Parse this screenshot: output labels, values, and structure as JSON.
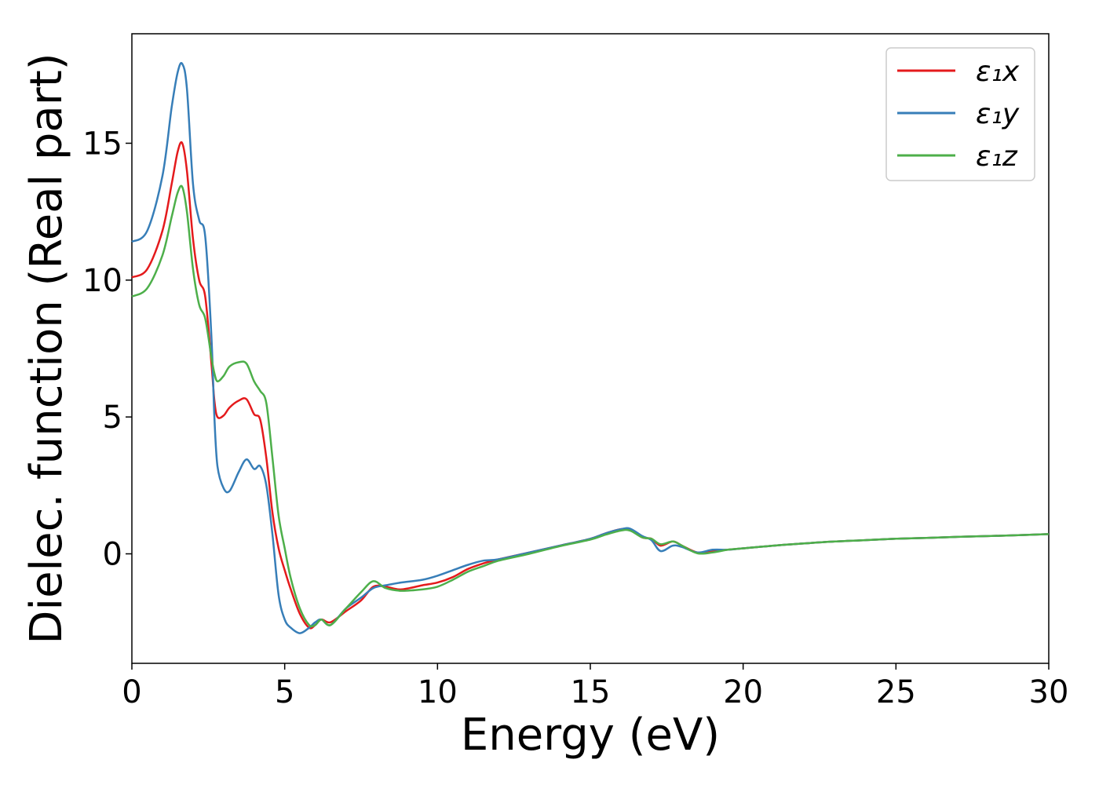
{
  "chart_data": {
    "type": "line",
    "title": "",
    "xlabel": "Energy (eV)",
    "ylabel": "Dielec. function (Real part)",
    "xlim": [
      0,
      30
    ],
    "ylim": [
      -4,
      19
    ],
    "xticks": [
      "0",
      "5",
      "10",
      "15",
      "20",
      "25",
      "30"
    ],
    "yticks": [
      "0",
      "5",
      "10",
      "15"
    ],
    "grid": false,
    "legend_position": "top-right",
    "x": [
      0,
      0.5,
      1.0,
      1.3,
      1.5,
      1.65,
      1.8,
      2.0,
      2.2,
      2.4,
      2.6,
      2.7,
      2.8,
      3.0,
      3.2,
      3.5,
      3.75,
      4.0,
      4.2,
      4.4,
      4.6,
      4.8,
      5.0,
      5.2,
      5.5,
      5.8,
      6.0,
      6.2,
      6.5,
      7.0,
      7.5,
      7.9,
      8.3,
      8.8,
      9.5,
      10.0,
      10.5,
      11.0,
      11.5,
      12.0,
      13.0,
      14.0,
      15.0,
      15.5,
      16.0,
      16.3,
      16.7,
      17.0,
      17.3,
      17.7,
      18.0,
      18.5,
      19.0,
      19.5,
      20.0,
      21.0,
      22.0,
      23.0,
      24.0,
      25.0,
      26.0,
      27.0,
      28.0,
      29.0,
      30.0
    ],
    "series": [
      {
        "name": "ε₁x",
        "color": "#e41a1c",
        "values": [
          10.1,
          10.4,
          11.8,
          13.5,
          14.7,
          15.0,
          14.0,
          11.5,
          10.0,
          9.4,
          7.0,
          5.6,
          5.0,
          5.05,
          5.35,
          5.6,
          5.65,
          5.1,
          4.9,
          3.5,
          1.5,
          0.2,
          -0.6,
          -1.3,
          -2.2,
          -2.7,
          -2.6,
          -2.4,
          -2.5,
          -2.1,
          -1.7,
          -1.2,
          -1.2,
          -1.3,
          -1.15,
          -1.05,
          -0.85,
          -0.55,
          -0.35,
          -0.2,
          0.05,
          0.3,
          0.55,
          0.75,
          0.9,
          0.88,
          0.6,
          0.55,
          0.3,
          0.45,
          0.3,
          0.05,
          0.1,
          0.15,
          0.2,
          0.3,
          0.38,
          0.45,
          0.5,
          0.55,
          0.58,
          0.62,
          0.65,
          0.68,
          0.72
        ]
      },
      {
        "name": "ε₁y",
        "color": "#377eb8",
        "values": [
          11.4,
          11.8,
          13.8,
          16.3,
          17.6,
          17.9,
          17.0,
          13.5,
          12.2,
          11.6,
          8.0,
          5.0,
          3.2,
          2.4,
          2.3,
          3.0,
          3.45,
          3.1,
          3.2,
          2.5,
          0.7,
          -1.5,
          -2.4,
          -2.7,
          -2.9,
          -2.7,
          -2.5,
          -2.4,
          -2.6,
          -2.0,
          -1.6,
          -1.25,
          -1.15,
          -1.05,
          -0.95,
          -0.8,
          -0.6,
          -0.4,
          -0.25,
          -0.2,
          0.05,
          0.3,
          0.55,
          0.75,
          0.9,
          0.92,
          0.65,
          0.5,
          0.1,
          0.3,
          0.25,
          0.05,
          0.15,
          0.15,
          0.2,
          0.3,
          0.38,
          0.45,
          0.5,
          0.55,
          0.58,
          0.62,
          0.65,
          0.68,
          0.72
        ]
      },
      {
        "name": "ε₁z",
        "color": "#4daf4a",
        "values": [
          9.4,
          9.7,
          10.9,
          12.3,
          13.2,
          13.4,
          12.5,
          10.4,
          9.1,
          8.6,
          7.2,
          6.6,
          6.3,
          6.5,
          6.85,
          7.0,
          6.95,
          6.3,
          5.95,
          5.5,
          3.5,
          1.4,
          0.2,
          -0.9,
          -2.0,
          -2.6,
          -2.6,
          -2.4,
          -2.6,
          -2.0,
          -1.4,
          -1.0,
          -1.25,
          -1.35,
          -1.3,
          -1.2,
          -0.95,
          -0.65,
          -0.45,
          -0.25,
          0.0,
          0.28,
          0.52,
          0.7,
          0.85,
          0.85,
          0.6,
          0.55,
          0.35,
          0.45,
          0.3,
          0.02,
          0.05,
          0.15,
          0.2,
          0.3,
          0.38,
          0.45,
          0.5,
          0.55,
          0.58,
          0.62,
          0.65,
          0.68,
          0.72
        ]
      }
    ]
  }
}
